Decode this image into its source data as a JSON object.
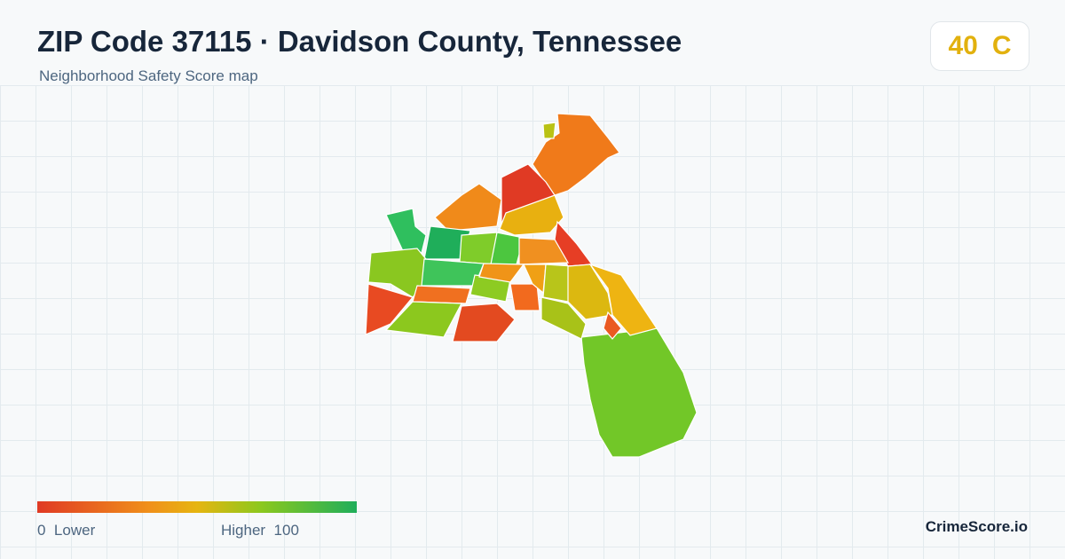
{
  "header": {
    "title": "ZIP Code 37115 · Davidson County, Tennessee",
    "subtitle": "Neighborhood Safety Score map"
  },
  "score": {
    "value": 40,
    "grade": "C"
  },
  "legend": {
    "min": 0,
    "min_label": "Lower",
    "max_label": "Higher",
    "max": 100
  },
  "brand": "CrimeScore.io"
}
